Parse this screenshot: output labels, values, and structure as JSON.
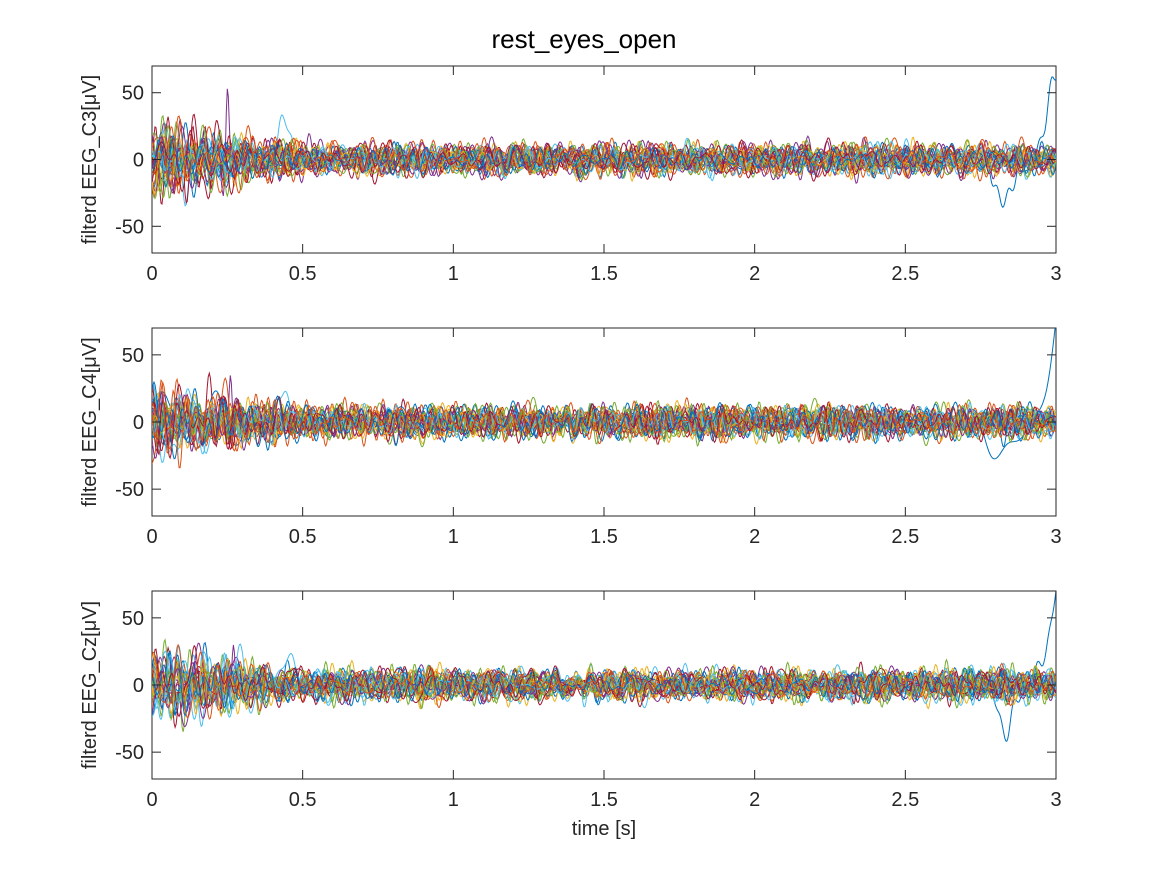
{
  "figure": {
    "title": "rest_eyes_open"
  },
  "chart_data": [
    {
      "type": "line",
      "ylabel": "filterd EEG_C3[μV]",
      "xlabel": "",
      "xlim": [
        0,
        3
      ],
      "ylim": [
        -70,
        70
      ],
      "xticks": [
        0,
        0.5,
        1,
        1.5,
        2,
        2.5,
        3
      ],
      "xtick_labels": [
        "0",
        "0.5",
        "1",
        "1.5",
        "2",
        "2.5",
        "3"
      ],
      "yticks": [
        -50,
        0,
        50
      ],
      "ytick_labels": [
        "-50",
        "0",
        "50"
      ],
      "grid": false,
      "n_traces": 30,
      "summary": {
        "baseline": 0,
        "typical_amplitude_uV": 8,
        "early_artifact_window_s": [
          0,
          0.5
        ],
        "peak_uV": 54,
        "peak_time_s": 0.25,
        "end_spike_uV": 70,
        "end_dip_uV": -28
      }
    },
    {
      "type": "line",
      "ylabel": "filterd EEG_C4[μV]",
      "xlabel": "",
      "xlim": [
        0,
        3
      ],
      "ylim": [
        -70,
        70
      ],
      "xticks": [
        0,
        0.5,
        1,
        1.5,
        2,
        2.5,
        3
      ],
      "xtick_labels": [
        "0",
        "0.5",
        "1",
        "1.5",
        "2",
        "2.5",
        "3"
      ],
      "yticks": [
        -50,
        0,
        50
      ],
      "ytick_labels": [
        "-50",
        "0",
        "50"
      ],
      "grid": false,
      "n_traces": 30,
      "summary": {
        "baseline": 0,
        "typical_amplitude_uV": 8,
        "early_artifact_window_s": [
          0,
          0.5
        ],
        "peak_uV": 41,
        "peak_time_s": 0.26,
        "end_spike_uV": 70,
        "end_dip_uV": -28
      }
    },
    {
      "type": "line",
      "ylabel": "filterd EEG_Cz[μV]",
      "xlabel": "time [s]",
      "xlim": [
        0,
        3
      ],
      "ylim": [
        -70,
        70
      ],
      "xticks": [
        0,
        0.5,
        1,
        1.5,
        2,
        2.5,
        3
      ],
      "xtick_labels": [
        "0",
        "0.5",
        "1",
        "1.5",
        "2",
        "2.5",
        "3"
      ],
      "yticks": [
        -50,
        0,
        50
      ],
      "ytick_labels": [
        "-50",
        "0",
        "50"
      ],
      "grid": false,
      "n_traces": 30,
      "summary": {
        "baseline": 0,
        "typical_amplitude_uV": 8,
        "early_artifact_window_s": [
          0,
          0.5
        ],
        "peak_uV": 37,
        "peak_time_s": 0.27,
        "end_spike_uV": 70,
        "end_dip_uV": -28
      }
    }
  ],
  "colors": [
    "#0072BD",
    "#D95319",
    "#EDB120",
    "#7E2F8E",
    "#77AC30",
    "#4DBEEE",
    "#A2142F"
  ]
}
